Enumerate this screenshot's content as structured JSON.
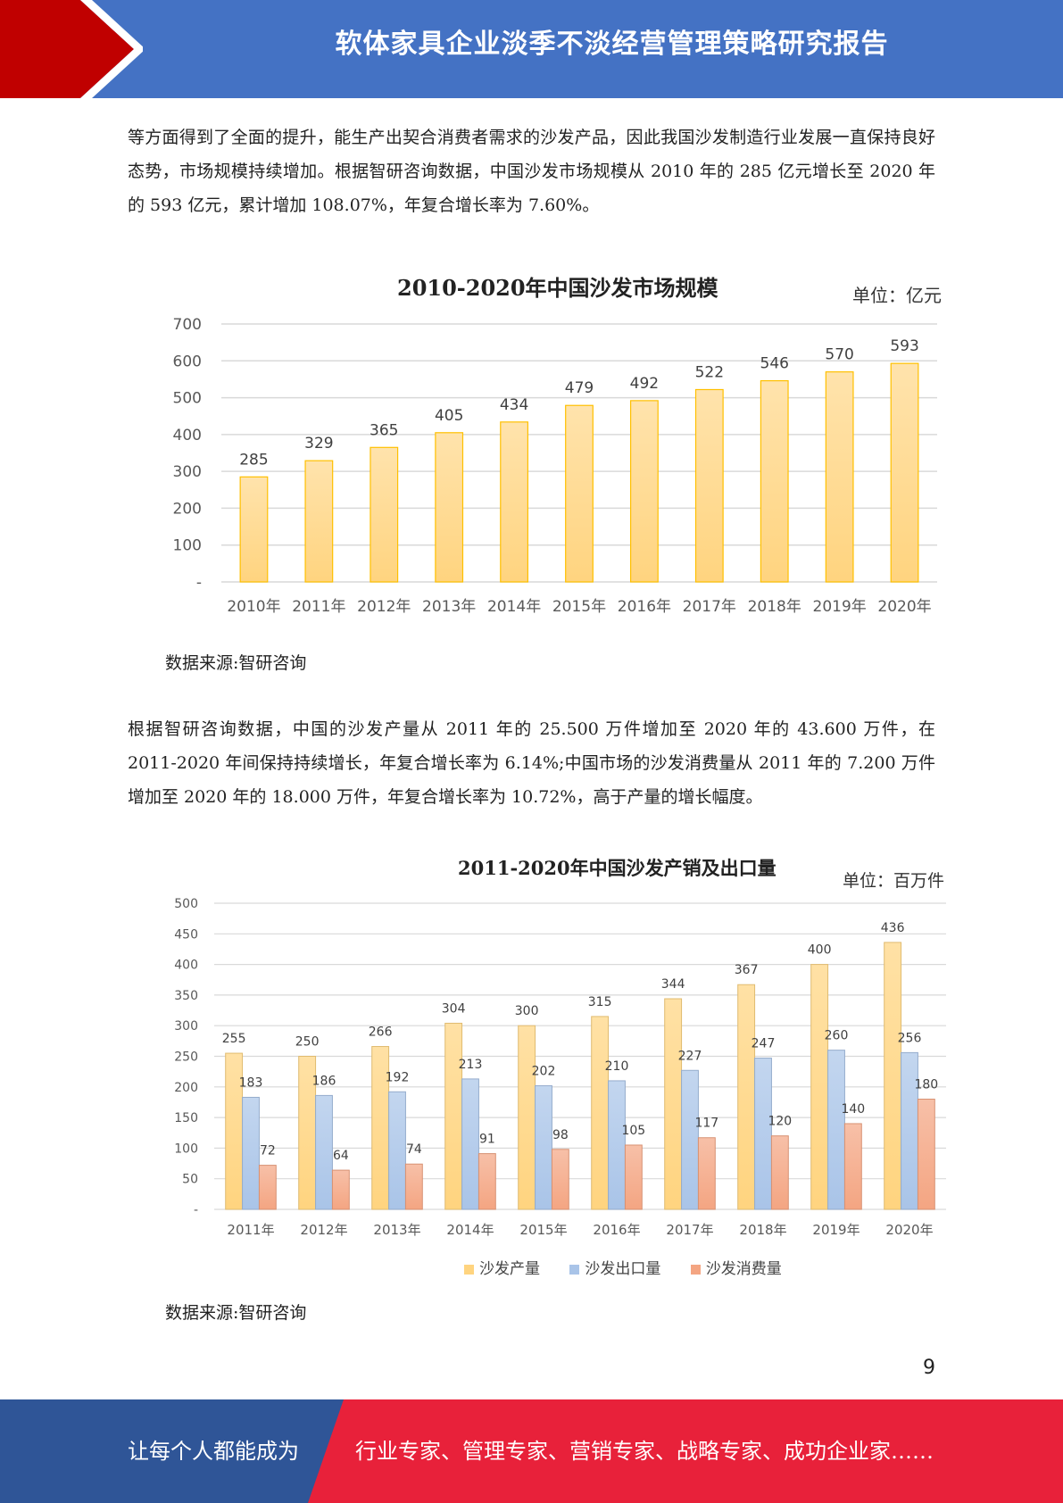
{
  "header": {
    "title": "软体家具企业淡季不淡经营管理策略研究报告"
  },
  "paragraph1": "等方面得到了全面的提升，能生产出契合消费者需求的沙发产品，因此我国沙发制造行业发展一直保持良好态势，市场规模持续增加。根据智研咨询数据，中国沙发市场规模从 2010 年的 285 亿元增长至 2020 年的 593 亿元，累计增加 108.07%，年复合增长率为 7.60%。",
  "source1": "数据来源:智研咨询",
  "paragraph2": "根据智研咨询数据，中国的沙发产量从 2011 年的 25.500 万件增加至 2020 年的 43.600 万件，在 2011-2020 年间保持持续增长，年复合增长率为 6.14%;中国市场的沙发消费量从 2011 年的 7.200 万件增加至 2020 年的 18.000 万件，年复合增长率为 10.72%，高于产量的增长幅度。",
  "source2": "数据来源:智研咨询",
  "page_number": "9",
  "footer": {
    "left_text": "让每个人都能成为",
    "right_text": "行业专家、管理专家、营销专家、战略专家、成功企业家……"
  },
  "colors": {
    "header_blue": "#4472c4",
    "header_red": "#c00000",
    "footer_blue": "#2f5597",
    "footer_red": "#e8213a"
  },
  "chart_data": [
    {
      "type": "bar",
      "title": "2010-2020年中国沙发市场规模",
      "unit": "单位：亿元",
      "categories": [
        "2010年",
        "2011年",
        "2012年",
        "2013年",
        "2014年",
        "2015年",
        "2016年",
        "2017年",
        "2018年",
        "2019年",
        "2020年"
      ],
      "values": [
        285,
        329,
        365,
        405,
        434,
        479,
        492,
        522,
        546,
        570,
        593
      ],
      "ylim": [
        0,
        700
      ],
      "yticks": [
        "-",
        "100",
        "200",
        "300",
        "400",
        "500",
        "600",
        "700"
      ],
      "grid": true,
      "color": "#ffd47f"
    },
    {
      "type": "bar",
      "title": "2011-2020年中国沙发产销及出口量",
      "unit": "单位：百万件",
      "categories": [
        "2011年",
        "2012年",
        "2013年",
        "2014年",
        "2015年",
        "2016年",
        "2017年",
        "2018年",
        "2019年",
        "2020年"
      ],
      "series": [
        {
          "name": "沙发产量",
          "values": [
            255,
            250,
            266,
            304,
            300,
            315,
            344,
            367,
            400,
            436
          ],
          "color": "#ffd47f"
        },
        {
          "name": "沙发出口量",
          "values": [
            183,
            186,
            192,
            213,
            202,
            210,
            227,
            247,
            260,
            256
          ],
          "color": "#a9c4e8"
        },
        {
          "name": "沙发消费量",
          "values": [
            72,
            64,
            74,
            91,
            98,
            105,
            117,
            120,
            140,
            180
          ],
          "color": "#f4a582"
        }
      ],
      "ylim": [
        0,
        500
      ],
      "yticks": [
        "-",
        "50",
        "100",
        "150",
        "200",
        "250",
        "300",
        "350",
        "400",
        "450",
        "500"
      ],
      "grid": true,
      "legend": "bottom"
    }
  ]
}
